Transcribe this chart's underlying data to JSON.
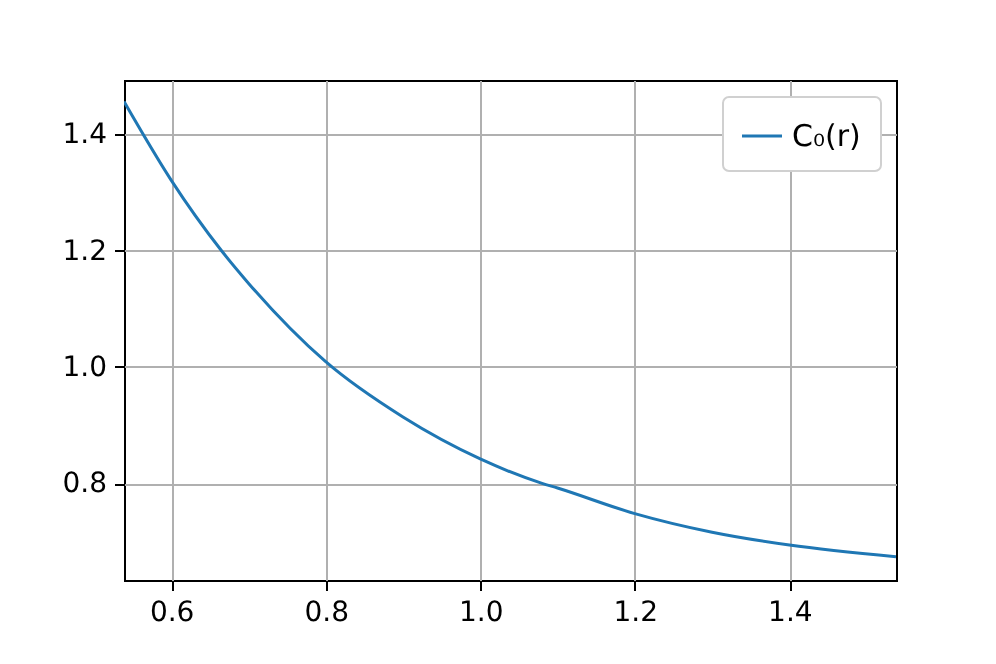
{
  "chart_data": {
    "type": "line",
    "x": [
      0.539,
      0.6,
      0.665,
      0.7,
      0.8,
      0.9,
      1.0,
      1.08,
      1.1,
      1.2,
      1.3,
      1.4,
      1.538
    ],
    "series": [
      {
        "name": "C₀(r)",
        "color": "#1f77b4",
        "values": [
          1.456,
          1.321,
          1.2,
          1.144,
          1.009,
          0.914,
          0.842,
          0.8,
          0.792,
          0.748,
          0.716,
          0.694,
          0.674
        ]
      }
    ],
    "xlim": [
      0.539,
      1.538
    ],
    "xticks": [
      0.6,
      0.8,
      {
        "value": 1,
        "label": "1.0"
      },
      1.2,
      1.4
    ],
    "ylim": [
      0.634,
      1.493
    ],
    "yticks": [
      0.8,
      {
        "value": 1,
        "label": "1.0"
      },
      1.2,
      1.4
    ],
    "grid": true,
    "legend": "top right",
    "marker": "none",
    "line_style": "solid"
  }
}
